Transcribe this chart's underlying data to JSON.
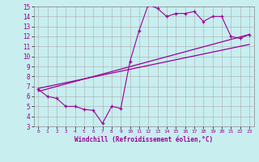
{
  "xlabel": "Windchill (Refroidissement éolien,°C)",
  "bg_color": "#c8eef0",
  "line_color": "#990099",
  "grid_color": "#aaaaaa",
  "xlim": [
    -0.5,
    23.5
  ],
  "ylim": [
    3,
    15
  ],
  "x_ticks": [
    0,
    1,
    2,
    3,
    4,
    5,
    6,
    7,
    8,
    9,
    10,
    11,
    12,
    13,
    14,
    15,
    16,
    17,
    18,
    19,
    20,
    21,
    22,
    23
  ],
  "y_ticks": [
    3,
    4,
    5,
    6,
    7,
    8,
    9,
    10,
    11,
    12,
    13,
    14,
    15
  ],
  "line1_x": [
    0,
    1,
    2,
    3,
    4,
    5,
    6,
    7,
    8,
    9,
    10,
    11,
    12,
    13,
    14,
    15,
    16,
    17,
    18,
    19,
    20,
    21,
    22,
    23
  ],
  "line1_y": [
    6.7,
    6.0,
    5.8,
    5.0,
    5.0,
    4.7,
    4.6,
    3.3,
    5.0,
    4.8,
    9.5,
    12.6,
    15.2,
    14.8,
    14.0,
    14.3,
    14.3,
    14.5,
    13.5,
    14.0,
    14.0,
    12.0,
    11.8,
    12.2
  ],
  "line2_x": [
    0,
    23
  ],
  "line2_y": [
    6.5,
    12.2
  ],
  "line3_x": [
    0,
    23
  ],
  "line3_y": [
    6.8,
    11.2
  ]
}
